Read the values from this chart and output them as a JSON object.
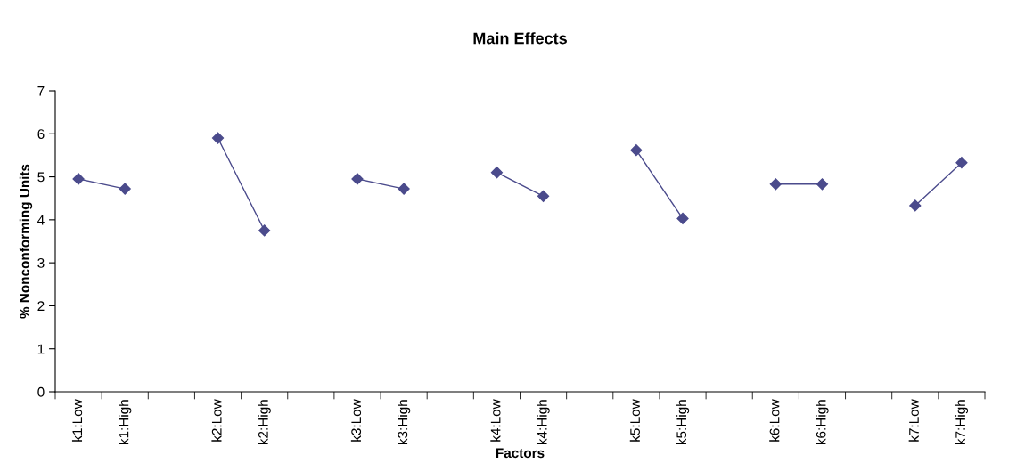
{
  "chart_data": {
    "type": "line",
    "title": "Main Effects",
    "xlabel": "Factors",
    "ylabel": "% Nonconforming Units",
    "categories": [
      "k1:Low",
      "k1:High",
      null,
      "k2:Low",
      "k2:High",
      null,
      "k3:Low",
      "k3:High",
      null,
      "k4:Low",
      "k4:High",
      null,
      "k5:Low",
      "k5:High",
      null,
      "k6:Low",
      "k6:High",
      null,
      "k7:Low",
      "k7:High"
    ],
    "series": [
      {
        "color": "#4b4b8c",
        "values": [
          4.95,
          4.72,
          null,
          5.9,
          3.75,
          null,
          4.95,
          4.72,
          null,
          5.1,
          4.55,
          null,
          5.62,
          4.03,
          null,
          4.83,
          4.83,
          null,
          4.33,
          5.33
        ]
      }
    ],
    "ylim": [
      0,
      7
    ],
    "yticks": [
      0,
      1,
      2,
      3,
      4,
      5,
      6,
      7
    ],
    "grid": false,
    "legend": false,
    "marker": "diamond",
    "line_style": "solid"
  }
}
